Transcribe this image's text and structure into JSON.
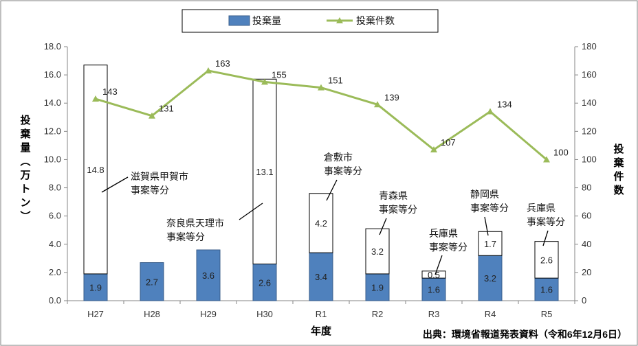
{
  "chart_data": {
    "type": "bar+line",
    "categories": [
      "H27",
      "H28",
      "H29",
      "H30",
      "R1",
      "R2",
      "R3",
      "R4",
      "R5"
    ],
    "series": [
      {
        "name": "投棄量",
        "type": "stacked-bar",
        "color": "#4F81BD",
        "values": [
          1.9,
          2.7,
          3.6,
          2.6,
          3.4,
          1.9,
          1.6,
          3.2,
          1.6
        ]
      },
      {
        "type": "stacked-bar-segment",
        "color": "#FFFFFF",
        "values": [
          14.8,
          null,
          null,
          13.1,
          4.2,
          3.2,
          0.5,
          1.7,
          2.6
        ]
      },
      {
        "name": "投棄件数",
        "type": "line",
        "axis": "right",
        "color": "#9BBB59",
        "values": [
          143,
          131,
          163,
          155,
          151,
          139,
          107,
          134,
          100
        ]
      }
    ],
    "xlabel": "年度",
    "ylabel": "投棄量（万トン）",
    "y2label": "投棄件数",
    "ylim": [
      0,
      18
    ],
    "yticks": [
      "0.0",
      "2.0",
      "4.0",
      "6.0",
      "8.0",
      "10.0",
      "12.0",
      "14.0",
      "16.0",
      "18.0"
    ],
    "y2lim": [
      0,
      180
    ],
    "y2ticks": [
      "0",
      "20",
      "40",
      "60",
      "80",
      "100",
      "120",
      "140",
      "160",
      "180"
    ],
    "legend_position": "top-center",
    "annotations": [
      {
        "category": "H27",
        "text": [
          "滋賀県甲賀市",
          "事案等分"
        ]
      },
      {
        "category": "H30",
        "text": [
          "奈良県天理市",
          "事案等分"
        ]
      },
      {
        "category": "R1",
        "text": [
          "倉敷市",
          "事案等分"
        ]
      },
      {
        "category": "R2",
        "text": [
          "青森県",
          "事案等分"
        ]
      },
      {
        "category": "R3",
        "text": [
          "兵庫県",
          "事案等分"
        ]
      },
      {
        "category": "R4",
        "text": [
          "静岡県",
          "事案等分"
        ]
      },
      {
        "category": "R5",
        "text": [
          "兵庫県",
          "事案等分"
        ]
      }
    ],
    "source": "出典：環境省報道発表資料（令和6年12月6日）"
  }
}
